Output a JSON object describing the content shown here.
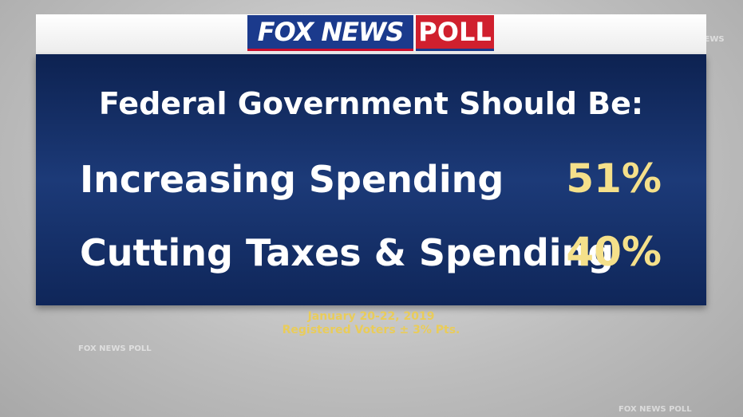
{
  "logo": {
    "brand": "FOX NEWS",
    "tag": "POLL"
  },
  "title": "Federal Government Should Be:",
  "rows": [
    {
      "label": "Increasing Spending",
      "value": "51%"
    },
    {
      "label": "Cutting Taxes & Spending",
      "value": "40%"
    }
  ],
  "footer": [
    "January 20-22, 2019",
    "Registered Voters ± 3% Pts."
  ],
  "watermark": "FOX NEWS POLL"
}
